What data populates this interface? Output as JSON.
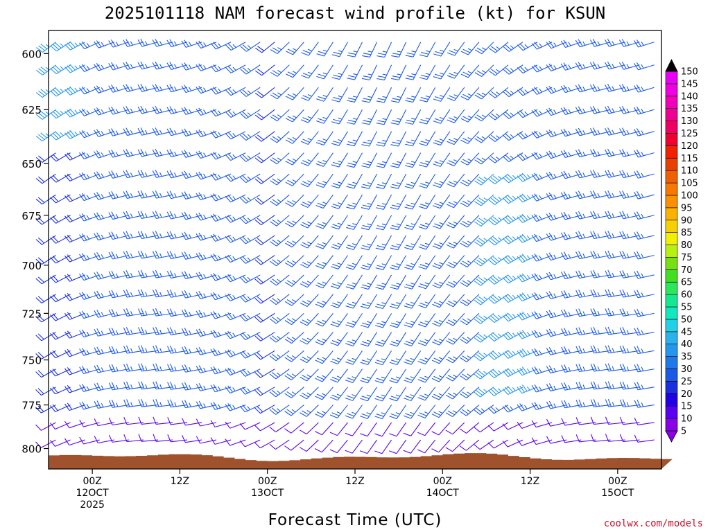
{
  "chart_data": {
    "type": "wind-barb-profile",
    "title": "2025101118 NAM forecast wind profile (kt) for KSUN",
    "xlabel": "Forecast Time (UTC)",
    "ylabel": "",
    "y_axis": {
      "ticks": [
        "600",
        "625",
        "650",
        "675",
        "700",
        "725",
        "750",
        "775",
        "800"
      ],
      "range_hPa": [
        812,
        590
      ],
      "inverted": true
    },
    "x_axis": {
      "ticks": [
        {
          "line1": "00Z",
          "line2": "12OCT",
          "line3": "2025",
          "hours_since_start": 6
        },
        {
          "line1": "12Z",
          "line2": "",
          "line3": "",
          "hours_since_start": 18
        },
        {
          "line1": "00Z",
          "line2": "13OCT",
          "line3": "",
          "hours_since_start": 30
        },
        {
          "line1": "12Z",
          "line2": "",
          "line3": "",
          "hours_since_start": 42
        },
        {
          "line1": "00Z",
          "line2": "14OCT",
          "line3": "",
          "hours_since_start": 54
        },
        {
          "line1": "12Z",
          "line2": "",
          "line3": "",
          "hours_since_start": 66
        },
        {
          "line1": "00Z",
          "line2": "15OCT",
          "line3": "",
          "hours_since_start": 78
        }
      ],
      "range_hours": [
        0,
        84
      ]
    },
    "colorbar": {
      "unit": "kt",
      "levels": [
        5,
        10,
        15,
        20,
        25,
        30,
        35,
        40,
        45,
        50,
        55,
        60,
        65,
        70,
        75,
        80,
        85,
        90,
        95,
        100,
        105,
        110,
        115,
        120,
        125,
        130,
        135,
        140,
        145,
        150
      ],
      "colors": [
        "#8a00e8",
        "#5a00f0",
        "#2200e6",
        "#1a2fe0",
        "#1a5ae6",
        "#1e78ec",
        "#2596ee",
        "#2ab2ee",
        "#1fd2e8",
        "#10e8c0",
        "#14e890",
        "#2ae85a",
        "#40e020",
        "#78e010",
        "#b8f010",
        "#f0f000",
        "#f8d000",
        "#fcb000",
        "#fc9000",
        "#f87800",
        "#f06000",
        "#e84000",
        "#f02000",
        "#f00030",
        "#f00060",
        "#f00090",
        "#f000b8",
        "#f000e0",
        "#e800f8"
      ]
    },
    "terrain": {
      "color": "#a0522d",
      "surface_pressure_approx_hPa": 805
    },
    "wind_speed_regions_kt": [
      {
        "hours": [
          0,
          6
        ],
        "pressure_hPa": [
          590,
          640
        ],
        "speed_kt": 35
      },
      {
        "hours": [
          6,
          30
        ],
        "pressure_hPa": [
          590,
          780
        ],
        "speed_kt": 25
      },
      {
        "hours": [
          32,
          84
        ],
        "pressure_hPa": [
          590,
          780
        ],
        "speed_kt": 25
      },
      {
        "hours": [
          60,
          68
        ],
        "pressure_hPa": [
          650,
          770
        ],
        "speed_kt": 35
      },
      {
        "hours": [
          0,
          84
        ],
        "pressure_hPa": [
          780,
          805
        ],
        "speed_kt": 10
      }
    ]
  },
  "credit": "coolwx.com/models"
}
